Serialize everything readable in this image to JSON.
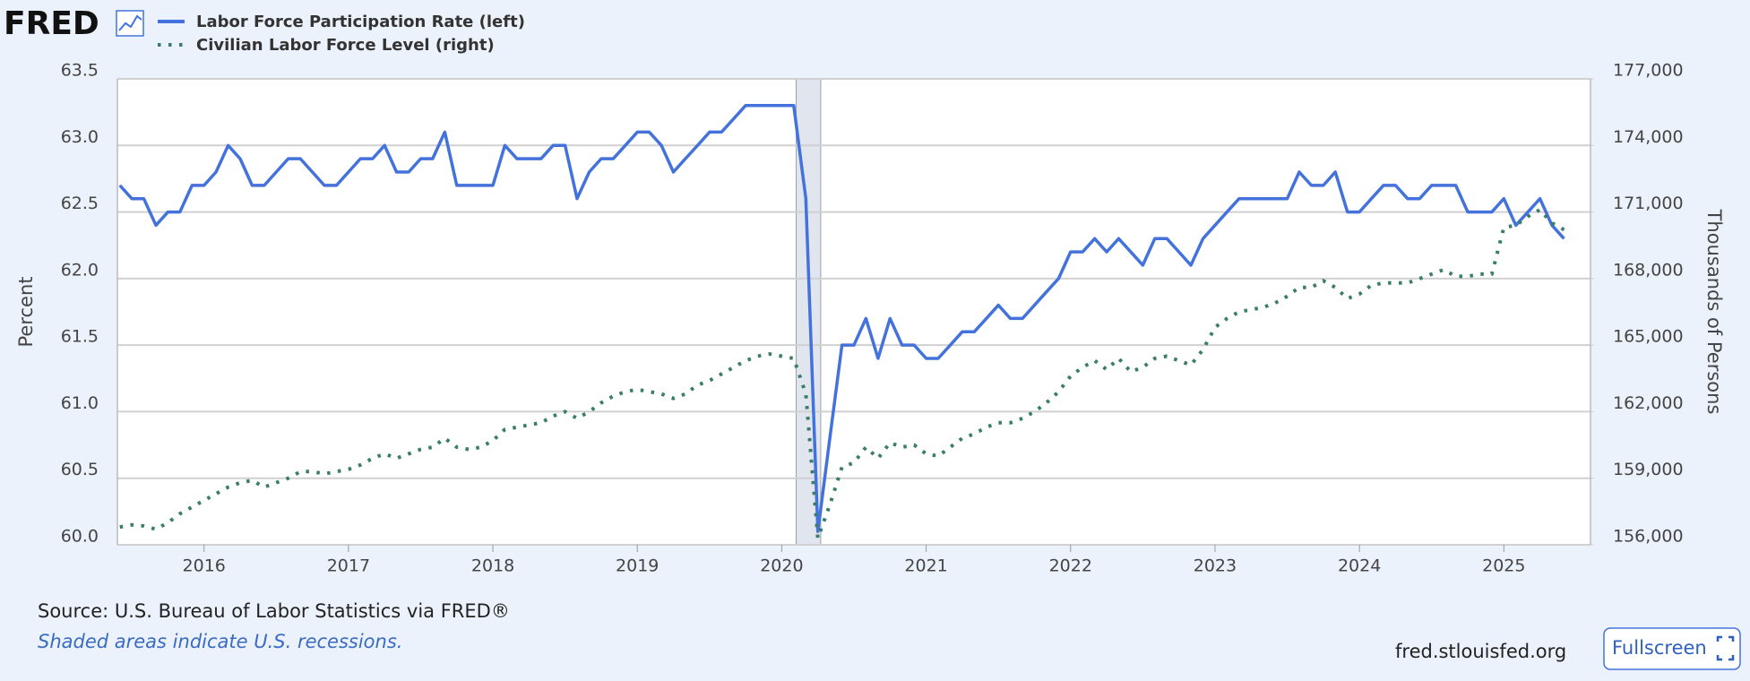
{
  "header": {
    "logo": "FRED"
  },
  "footer": {
    "source": "Source: U.S. Bureau of Labor Statistics via FRED®",
    "note": "Shaded areas indicate U.S. recessions.",
    "url": "fred.stlouisfed.org",
    "button": "Fullscreen"
  },
  "chart_data": {
    "type": "line",
    "ylabel": "Percent",
    "y2label": "Thousands of Persons",
    "xlim": [
      2015.4,
      2025.6
    ],
    "xticks": [
      2016,
      2017,
      2018,
      2019,
      2020,
      2021,
      2022,
      2023,
      2024,
      2025
    ],
    "ylim": [
      60,
      63.5
    ],
    "yticks": [
      {
        "value": 60,
        "label": "60.0"
      },
      60.5,
      {
        "value": 61,
        "label": "61.0"
      },
      61.5,
      {
        "value": 62,
        "label": "62.0"
      },
      62.5,
      {
        "value": 63,
        "label": "63.0"
      },
      63.5
    ],
    "y2lim": [
      156000,
      177000
    ],
    "y2ticks": [
      {
        "value": 156000,
        "label": "156,000"
      },
      {
        "value": 159000,
        "label": "159,000"
      },
      {
        "value": 162000,
        "label": "162,000"
      },
      {
        "value": 165000,
        "label": "165,000"
      },
      {
        "value": 168000,
        "label": "168,000"
      },
      {
        "value": 171000,
        "label": "171,000"
      },
      {
        "value": 174000,
        "label": "174,000"
      },
      {
        "value": 177000,
        "label": "177,000"
      }
    ],
    "grid": true,
    "recessions": [
      {
        "start": 2020.1,
        "end": 2020.27
      }
    ],
    "x": [
      2015.417,
      2015.5,
      2015.583,
      2015.667,
      2015.75,
      2015.833,
      2015.917,
      2016,
      2016.083,
      2016.167,
      2016.25,
      2016.333,
      2016.417,
      2016.5,
      2016.583,
      2016.667,
      2016.75,
      2016.833,
      2016.917,
      2017,
      2017.083,
      2017.167,
      2017.25,
      2017.333,
      2017.417,
      2017.5,
      2017.583,
      2017.667,
      2017.75,
      2017.833,
      2017.917,
      2018,
      2018.083,
      2018.167,
      2018.25,
      2018.333,
      2018.417,
      2018.5,
      2018.583,
      2018.667,
      2018.75,
      2018.833,
      2018.917,
      2019,
      2019.083,
      2019.167,
      2019.25,
      2019.333,
      2019.417,
      2019.5,
      2019.583,
      2019.667,
      2019.75,
      2019.833,
      2019.917,
      2020,
      2020.083,
      2020.167,
      2020.25,
      2020.333,
      2020.417,
      2020.5,
      2020.583,
      2020.667,
      2020.75,
      2020.833,
      2020.917,
      2021,
      2021.083,
      2021.167,
      2021.25,
      2021.333,
      2021.417,
      2021.5,
      2021.583,
      2021.667,
      2021.75,
      2021.833,
      2021.917,
      2022,
      2022.083,
      2022.167,
      2022.25,
      2022.333,
      2022.417,
      2022.5,
      2022.583,
      2022.667,
      2022.75,
      2022.833,
      2022.917,
      2023,
      2023.083,
      2023.167,
      2023.25,
      2023.333,
      2023.417,
      2023.5,
      2023.583,
      2023.667,
      2023.75,
      2023.833,
      2023.917,
      2024,
      2024.083,
      2024.167,
      2024.25,
      2024.333,
      2024.417,
      2024.5,
      2024.583,
      2024.667,
      2024.75,
      2024.833,
      2024.917,
      2025,
      2025.083,
      2025.167,
      2025.25,
      2025.333,
      2025.417
    ],
    "series": [
      {
        "name": "Labor Force Participation Rate (left)",
        "color": "#4472dc",
        "style": "solid",
        "axis": "y",
        "values": [
          62.7,
          62.6,
          62.6,
          62.4,
          62.5,
          62.5,
          62.7,
          62.7,
          62.8,
          63.0,
          62.9,
          62.7,
          62.7,
          62.8,
          62.9,
          62.9,
          62.8,
          62.7,
          62.7,
          62.8,
          62.9,
          62.9,
          63.0,
          62.8,
          62.8,
          62.9,
          62.9,
          63.1,
          62.7,
          62.7,
          62.7,
          62.7,
          63.0,
          62.9,
          62.9,
          62.9,
          63.0,
          63.0,
          62.6,
          62.8,
          62.9,
          62.9,
          63.0,
          63.1,
          63.1,
          63.0,
          62.8,
          62.9,
          63.0,
          63.1,
          63.1,
          63.2,
          63.3,
          63.3,
          63.3,
          63.3,
          63.3,
          62.6,
          60.1,
          60.8,
          61.5,
          61.5,
          61.7,
          61.4,
          61.7,
          61.5,
          61.5,
          61.4,
          61.4,
          61.5,
          61.6,
          61.6,
          61.7,
          61.8,
          61.7,
          61.7,
          61.8,
          61.9,
          62.0,
          62.2,
          62.2,
          62.3,
          62.2,
          62.3,
          62.2,
          62.1,
          62.3,
          62.3,
          62.2,
          62.1,
          62.3,
          62.4,
          62.5,
          62.6,
          62.6,
          62.6,
          62.6,
          62.6,
          62.8,
          62.7,
          62.7,
          62.8,
          62.5,
          62.5,
          62.6,
          62.7,
          62.7,
          62.6,
          62.6,
          62.7,
          62.7,
          62.7,
          62.5,
          62.5,
          62.5,
          62.6,
          62.4,
          62.5,
          62.6,
          62.4,
          62.3
        ]
      },
      {
        "name": "Civilian Labor Force Level (right)",
        "color": "#3a7d6a",
        "style": "dotted",
        "axis": "y2",
        "values": [
          156800,
          156900,
          156850,
          156700,
          157000,
          157400,
          157700,
          158000,
          158300,
          158600,
          158800,
          158900,
          158600,
          158800,
          159000,
          159300,
          159300,
          159200,
          159300,
          159400,
          159600,
          159900,
          160100,
          159900,
          160100,
          160300,
          160400,
          160800,
          160400,
          160300,
          160400,
          160700,
          161200,
          161300,
          161400,
          161500,
          161800,
          162000,
          161700,
          162000,
          162400,
          162700,
          162900,
          163000,
          162900,
          162800,
          162600,
          162800,
          163200,
          163400,
          163700,
          164000,
          164300,
          164500,
          164600,
          164500,
          164400,
          162800,
          156300,
          157800,
          159500,
          159700,
          160400,
          159900,
          160600,
          160400,
          160500,
          160100,
          160000,
          160400,
          160800,
          161000,
          161300,
          161500,
          161500,
          161700,
          162000,
          162400,
          162900,
          163600,
          164000,
          164300,
          163900,
          164400,
          163800,
          164000,
          164400,
          164500,
          164300,
          164100,
          164800,
          165800,
          166200,
          166500,
          166600,
          166700,
          166900,
          167200,
          167600,
          167600,
          167900,
          167600,
          167100,
          167300,
          167700,
          167800,
          167800,
          167800,
          168000,
          168200,
          168400,
          168100,
          168100,
          168200,
          168200,
          170300,
          170400,
          170800,
          171100,
          170500,
          170200
        ]
      }
    ]
  }
}
